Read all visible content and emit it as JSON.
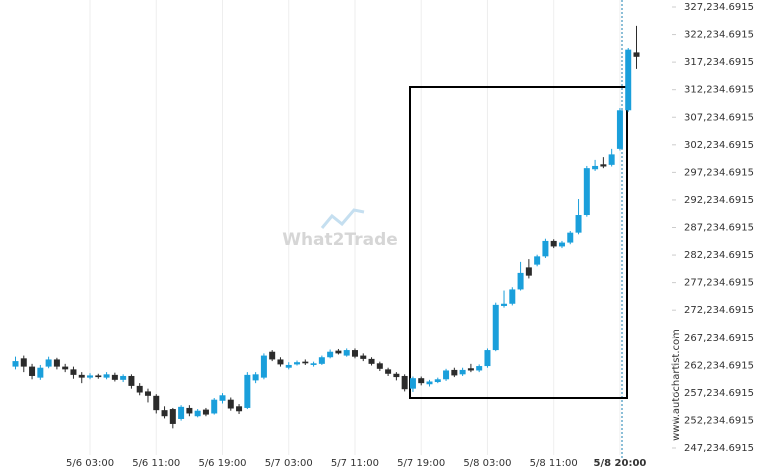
{
  "chart_data": {
    "type": "candlestick",
    "watermark": "What2Trade",
    "source": "www.autochartist.com",
    "categories": [
      null,
      null,
      null,
      null,
      null,
      null,
      null,
      null,
      null,
      "5/6 03:00",
      null,
      null,
      null,
      null,
      null,
      null,
      null,
      "5/6 11:00",
      null,
      null,
      null,
      null,
      null,
      null,
      null,
      "5/6 19:00",
      null,
      null,
      null,
      null,
      null,
      null,
      null,
      "5/7 03:00",
      null,
      null,
      null,
      null,
      null,
      null,
      null,
      "5/7 11:00",
      null,
      null,
      null,
      null,
      null,
      null,
      null,
      "5/7 19:00",
      null,
      null,
      null,
      null,
      null,
      null,
      null,
      "5/8 03:00",
      null,
      null,
      null,
      null,
      null,
      null,
      null,
      "5/8 11:00",
      null,
      null,
      null,
      null,
      null,
      null,
      null,
      "5/8 20:00",
      null,
      null
    ],
    "open": [
      262000,
      263500,
      262000,
      260000,
      262000,
      263300,
      262000,
      261500,
      260500,
      260000,
      260400,
      260000,
      260500,
      259600,
      260300,
      258500,
      257500,
      256700,
      254100,
      254300,
      252500,
      254500,
      253000,
      254200,
      253500,
      255800,
      256000,
      254800,
      254500,
      259500,
      260000,
      264700,
      263300,
      261800,
      262400,
      262900,
      262300,
      262500,
      263700,
      264900,
      264000,
      265000,
      264000,
      263400,
      262600,
      261500,
      260700,
      260300,
      258000,
      259900,
      258800,
      259200,
      259700,
      261400,
      260600,
      261700,
      261300,
      262100,
      265000,
      273000,
      273400,
      276000,
      280000,
      280500,
      282000,
      284800,
      283800,
      284500,
      286300,
      289500,
      297800,
      298700,
      298600,
      301500,
      308500,
      319000
    ],
    "high": [
      263800,
      264000,
      262500,
      262300,
      263800,
      263600,
      262500,
      262000,
      261000,
      260800,
      260700,
      261000,
      260900,
      260600,
      260600,
      259000,
      258000,
      257000,
      254800,
      254500,
      255000,
      255000,
      254300,
      254500,
      256300,
      257200,
      256400,
      255200,
      261000,
      261000,
      264400,
      265000,
      263700,
      262800,
      263100,
      263300,
      262900,
      264000,
      265100,
      265200,
      265300,
      265300,
      264400,
      263700,
      262900,
      261800,
      261000,
      260600,
      260200,
      260200,
      259600,
      260000,
      261600,
      261800,
      261800,
      262500,
      262400,
      265300,
      273600,
      275800,
      276400,
      281000,
      281500,
      282300,
      285200,
      285100,
      284800,
      286600,
      292400,
      298400,
      299500,
      300000,
      301500,
      308900,
      319800,
      323800
    ],
    "low": [
      261500,
      261000,
      259700,
      259600,
      261700,
      261500,
      261000,
      259800,
      259000,
      259700,
      259800,
      259700,
      259300,
      259200,
      258000,
      256800,
      255500,
      253500,
      252600,
      250800,
      252200,
      253000,
      252800,
      253000,
      253300,
      255300,
      254000,
      253400,
      254300,
      259000,
      259700,
      263000,
      262000,
      261500,
      262200,
      262300,
      262000,
      262300,
      263500,
      264200,
      263800,
      263500,
      263000,
      262200,
      261200,
      260300,
      259500,
      257500,
      257400,
      258600,
      258400,
      259000,
      259400,
      260100,
      260300,
      261000,
      261000,
      261800,
      264800,
      272700,
      273100,
      275800,
      278000,
      280200,
      281700,
      283500,
      283500,
      284200,
      286000,
      289200,
      297500,
      298000,
      298300,
      301200,
      308200,
      316000
    ],
    "close": [
      263000,
      262000,
      260300,
      261800,
      263300,
      262000,
      261500,
      260500,
      260000,
      260400,
      260100,
      260600,
      259600,
      260300,
      258500,
      257300,
      256700,
      254100,
      253000,
      251600,
      254700,
      253500,
      254000,
      253300,
      256000,
      256800,
      254400,
      253900,
      260500,
      260600,
      264000,
      263300,
      262400,
      262300,
      262800,
      262600,
      262600,
      263700,
      264700,
      264400,
      265000,
      263800,
      263400,
      262500,
      261600,
      260700,
      260100,
      257900,
      259900,
      259000,
      259300,
      259700,
      261300,
      260400,
      261400,
      261300,
      262100,
      265000,
      273200,
      273400,
      276000,
      279000,
      278500,
      282000,
      284800,
      283800,
      284500,
      286300,
      289500,
      298000,
      298400,
      298300,
      300500,
      308500,
      319500,
      318200
    ],
    "up_color": "#1a9fdb",
    "down_color": "#2b2b2b",
    "ylim": [
      247234.6915,
      327234.6915
    ],
    "yticks": [
      {
        "value": 247234.6915,
        "label": "247,234.6915"
      },
      {
        "value": 252234.6915,
        "label": "252,234.6915"
      },
      {
        "value": 257234.6915,
        "label": "257,234.6915"
      },
      {
        "value": 262234.6915,
        "label": "262,234.6915"
      },
      {
        "value": 267234.6915,
        "label": "267,234.6915"
      },
      {
        "value": 272234.6915,
        "label": "272,234.6915"
      },
      {
        "value": 277234.6915,
        "label": "277,234.6915"
      },
      {
        "value": 282234.6915,
        "label": "282,234.6915"
      },
      {
        "value": 287234.6915,
        "label": "287,234.6915"
      },
      {
        "value": 292234.6915,
        "label": "292,234.6915"
      },
      {
        "value": 297234.6915,
        "label": "297,234.6915"
      },
      {
        "value": 302234.6915,
        "label": "302,234.6915"
      },
      {
        "value": 307234.6915,
        "label": "307,234.6915"
      },
      {
        "value": 312234.6915,
        "label": "312,234.6915"
      },
      {
        "value": 317234.6915,
        "label": "317,234.6915"
      },
      {
        "value": 322234.6915,
        "label": "322,234.6915"
      },
      {
        "value": 327234.6915,
        "label": "327,234.6915"
      }
    ],
    "grid": "x"
  }
}
